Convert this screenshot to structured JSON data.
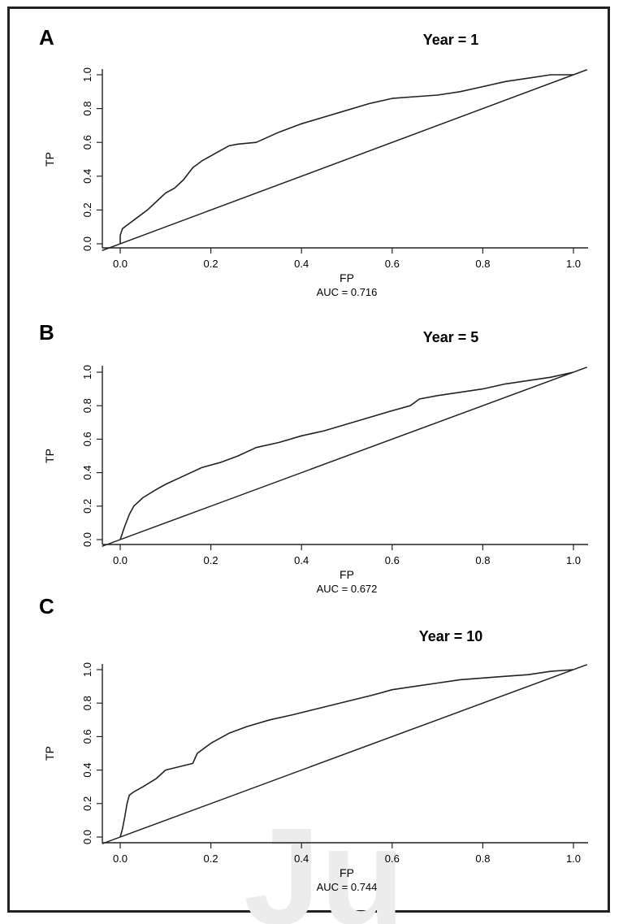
{
  "chart_data": [
    {
      "type": "line",
      "panel_label": "A",
      "title": "Year = 1",
      "xlabel": "FP",
      "ylabel": "TP",
      "auc_label": "AUC =  0.716",
      "xlim": [
        0,
        1
      ],
      "ylim": [
        0,
        1
      ],
      "xticks": [
        "0.0",
        "0.2",
        "0.4",
        "0.6",
        "0.8",
        "1.0"
      ],
      "yticks": [
        "0.0",
        "0.2",
        "0.4",
        "0.6",
        "0.8",
        "1.0"
      ],
      "diagonal": [
        [
          0,
          0
        ],
        [
          1,
          1
        ]
      ],
      "series": [
        {
          "x": [
            0,
            0,
            0.005,
            0.02,
            0.04,
            0.06,
            0.08,
            0.1,
            0.12,
            0.14,
            0.16,
            0.18,
            0.2,
            0.22,
            0.24,
            0.26,
            0.3,
            0.35,
            0.4,
            0.45,
            0.5,
            0.55,
            0.6,
            0.65,
            0.7,
            0.75,
            0.8,
            0.85,
            0.9,
            0.95,
            1.0
          ],
          "y": [
            0,
            0.05,
            0.09,
            0.12,
            0.16,
            0.2,
            0.25,
            0.3,
            0.33,
            0.38,
            0.45,
            0.49,
            0.52,
            0.55,
            0.58,
            0.59,
            0.6,
            0.66,
            0.71,
            0.75,
            0.79,
            0.83,
            0.86,
            0.87,
            0.88,
            0.9,
            0.93,
            0.96,
            0.98,
            1.0,
            1.0
          ]
        }
      ]
    },
    {
      "type": "line",
      "panel_label": "B",
      "title": "Year = 5",
      "xlabel": "FP",
      "ylabel": "TP",
      "auc_label": "AUC =  0.672",
      "xlim": [
        0,
        1
      ],
      "ylim": [
        0,
        1
      ],
      "xticks": [
        "0.0",
        "0.2",
        "0.4",
        "0.6",
        "0.8",
        "1.0"
      ],
      "yticks": [
        "0.0",
        "0.2",
        "0.4",
        "0.6",
        "0.8",
        "1.0"
      ],
      "diagonal": [
        [
          0,
          0
        ],
        [
          1,
          1
        ]
      ],
      "series": [
        {
          "x": [
            0,
            0.005,
            0.01,
            0.02,
            0.03,
            0.05,
            0.08,
            0.1,
            0.14,
            0.18,
            0.22,
            0.26,
            0.3,
            0.35,
            0.4,
            0.45,
            0.5,
            0.55,
            0.6,
            0.64,
            0.66,
            0.7,
            0.75,
            0.8,
            0.85,
            0.9,
            0.95,
            1.0
          ],
          "y": [
            0,
            0.04,
            0.08,
            0.15,
            0.2,
            0.25,
            0.3,
            0.33,
            0.38,
            0.43,
            0.46,
            0.5,
            0.55,
            0.58,
            0.62,
            0.65,
            0.69,
            0.73,
            0.77,
            0.8,
            0.84,
            0.86,
            0.88,
            0.9,
            0.93,
            0.95,
            0.97,
            1.0
          ]
        }
      ]
    },
    {
      "type": "line",
      "panel_label": "C",
      "title": "Year = 10",
      "xlabel": "FP",
      "ylabel": "TP",
      "auc_label": "AUC =  0.744",
      "xlim": [
        0,
        1
      ],
      "ylim": [
        0,
        1
      ],
      "xticks": [
        "0.0",
        "0.2",
        "0.4",
        "0.6",
        "0.8",
        "1.0"
      ],
      "yticks": [
        "0.0",
        "0.2",
        "0.4",
        "0.6",
        "0.8",
        "1.0"
      ],
      "diagonal": [
        [
          0,
          0
        ],
        [
          1,
          1
        ]
      ],
      "series": [
        {
          "x": [
            0,
            0.005,
            0.01,
            0.015,
            0.02,
            0.03,
            0.05,
            0.08,
            0.1,
            0.13,
            0.16,
            0.17,
            0.2,
            0.24,
            0.28,
            0.33,
            0.38,
            0.44,
            0.5,
            0.56,
            0.6,
            0.65,
            0.7,
            0.75,
            0.8,
            0.85,
            0.9,
            0.95,
            1.0
          ],
          "y": [
            0,
            0.05,
            0.12,
            0.2,
            0.25,
            0.27,
            0.3,
            0.35,
            0.4,
            0.42,
            0.44,
            0.5,
            0.56,
            0.62,
            0.66,
            0.7,
            0.73,
            0.77,
            0.81,
            0.85,
            0.88,
            0.9,
            0.92,
            0.94,
            0.95,
            0.96,
            0.97,
            0.99,
            1.0
          ]
        }
      ]
    }
  ]
}
